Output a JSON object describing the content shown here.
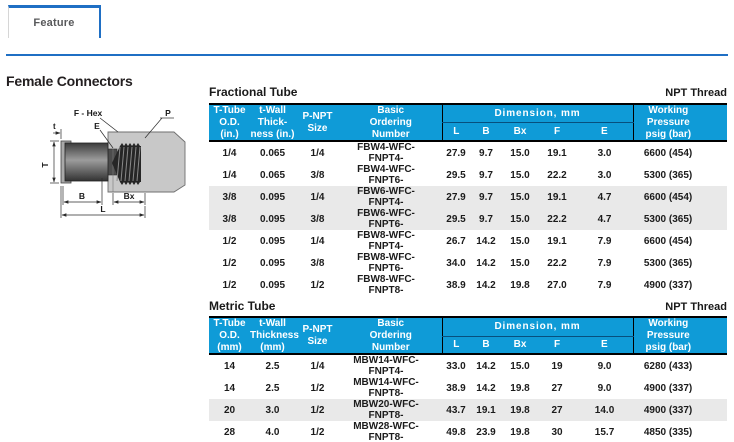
{
  "colors": {
    "accent_blue": "#1f6fc4",
    "table_header_blue": "#0f9bd7",
    "stripe_gray": "#e9e9e9"
  },
  "tab": {
    "label": "Feature"
  },
  "heading": "Female Connectors",
  "diagram": {
    "labels": {
      "t": "t",
      "T": "T",
      "f_hex": "F - Hex",
      "e": "E",
      "p": "P",
      "b": "B",
      "bx": "Bx",
      "l": "L"
    }
  },
  "tables": [
    {
      "title": "Fractional Tube",
      "thread_note": "NPT Thread",
      "headers": [
        "T-Tube\nO.D.\n(in.)",
        "t-Wall\nThick-\nness (in.)",
        "P-NPT\nSize",
        "Basic\nOrdering\nNumber"
      ],
      "dim_label": "Dimension, mm",
      "dim_cols": [
        "L",
        "B",
        "Bx",
        "F",
        "E"
      ],
      "pressure_header": "Working\nPressure\npsig (bar)",
      "rows": [
        {
          "shaded": false,
          "cells": [
            "1/4",
            "0.065",
            "1/4",
            "FBW4-WFC-FNPT4-",
            "27.9",
            "9.7",
            "15.0",
            "19.1",
            "3.0",
            "6600 (454)"
          ]
        },
        {
          "shaded": false,
          "cells": [
            "1/4",
            "0.065",
            "3/8",
            "FBW4-WFC-FNPT6-",
            "29.5",
            "9.7",
            "15.0",
            "22.2",
            "3.0",
            "5300 (365)"
          ]
        },
        {
          "shaded": true,
          "cells": [
            "3/8",
            "0.095",
            "1/4",
            "FBW6-WFC-FNPT4-",
            "27.9",
            "9.7",
            "15.0",
            "19.1",
            "4.7",
            "6600 (454)"
          ]
        },
        {
          "shaded": true,
          "cells": [
            "3/8",
            "0.095",
            "3/8",
            "FBW6-WFC-FNPT6-",
            "29.5",
            "9.7",
            "15.0",
            "22.2",
            "4.7",
            "5300 (365)"
          ]
        },
        {
          "shaded": false,
          "cells": [
            "1/2",
            "0.095",
            "1/4",
            "FBW8-WFC-FNPT4-",
            "26.7",
            "14.2",
            "15.0",
            "19.1",
            "7.9",
            "6600 (454)"
          ]
        },
        {
          "shaded": false,
          "cells": [
            "1/2",
            "0.095",
            "3/8",
            "FBW8-WFC-FNPT6-",
            "34.0",
            "14.2",
            "15.0",
            "22.2",
            "7.9",
            "5300 (365)"
          ]
        },
        {
          "shaded": false,
          "cells": [
            "1/2",
            "0.095",
            "1/2",
            "FBW8-WFC-FNPT8-",
            "38.9",
            "14.2",
            "19.8",
            "27.0",
            "7.9",
            "4900 (337)"
          ]
        }
      ]
    },
    {
      "title": "Metric Tube",
      "thread_note": "NPT Thread",
      "headers": [
        "T-Tube\nO.D.\n(mm)",
        "t-Wall\nThickness\n(mm)",
        "P-NPT\nSize",
        "Basic\nOrdering\nNumber"
      ],
      "dim_label": "Dimension, mm",
      "dim_cols": [
        "L",
        "B",
        "Bx",
        "F",
        "E"
      ],
      "pressure_header": "Working\nPressure\npsig (bar)",
      "rows": [
        {
          "shaded": false,
          "cells": [
            "14",
            "2.5",
            "1/4",
            "MBW14-WFC-FNPT4-",
            "33.0",
            "14.2",
            "15.0",
            "19",
            "9.0",
            "6280 (433)"
          ]
        },
        {
          "shaded": false,
          "cells": [
            "14",
            "2.5",
            "1/2",
            "MBW14-WFC-FNPT8-",
            "38.9",
            "14.2",
            "19.8",
            "27",
            "9.0",
            "4900 (337)"
          ]
        },
        {
          "shaded": true,
          "cells": [
            "20",
            "3.0",
            "1/2",
            "MBW20-WFC-FNPT8-",
            "43.7",
            "19.1",
            "19.8",
            "27",
            "14.0",
            "4900 (337)"
          ]
        },
        {
          "shaded": false,
          "cells": [
            "28",
            "4.0",
            "1/2",
            "MBW28-WFC-FNPT8-",
            "49.8",
            "23.9",
            "19.8",
            "30",
            "15.7",
            "4850 (335)"
          ]
        }
      ]
    }
  ]
}
